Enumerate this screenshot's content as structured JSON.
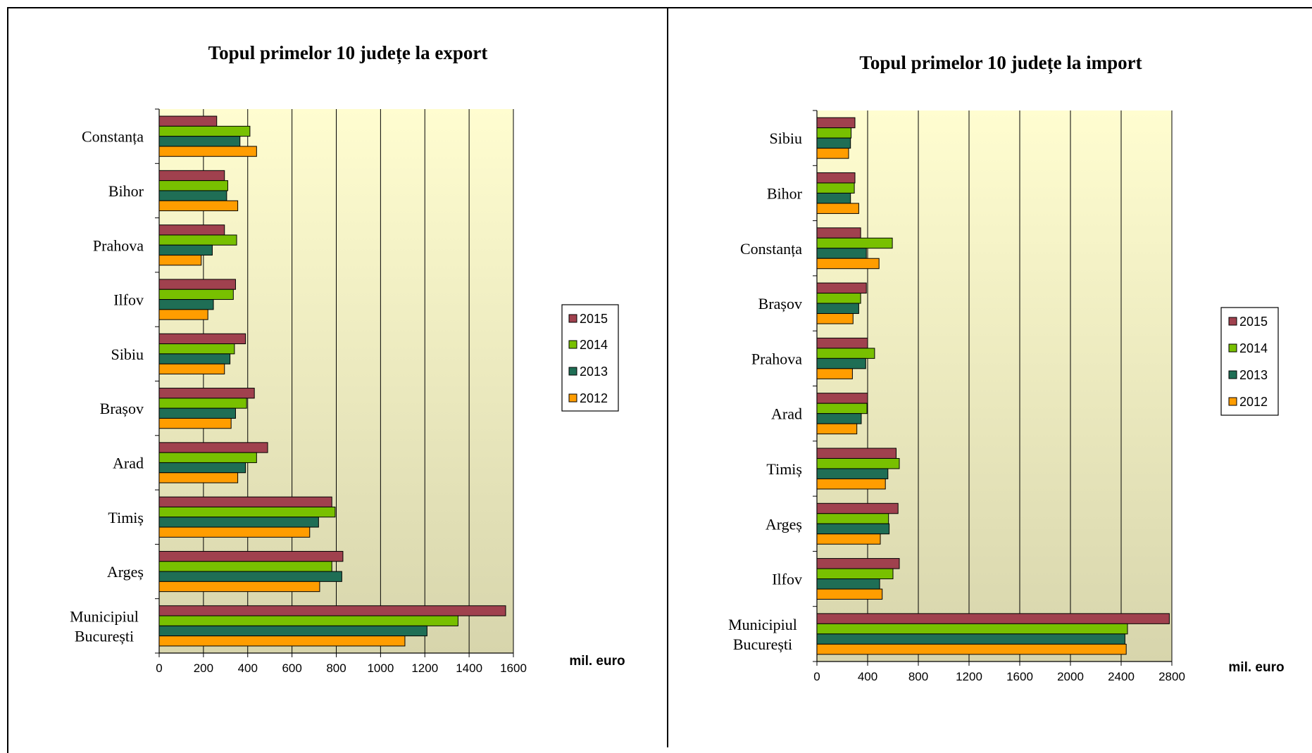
{
  "colors": {
    "2015": "#a0414e",
    "2014": "#78c000",
    "2013": "#1f6e55",
    "2012": "#ff9d00",
    "plot_top": "#fffdd0",
    "plot_bottom": "#d7d5ac"
  },
  "chart_data": [
    {
      "type": "bar",
      "orientation": "horizontal",
      "title": "Topul primelor 10 județe la export",
      "unit_label": "mil. euro",
      "categories": [
        "Constanța",
        "Bihor",
        "Prahova",
        "Ilfov",
        "Sibiu",
        "Brașov",
        "Arad",
        "Timiș",
        "Argeș",
        "Municipiul București"
      ],
      "category_lines": [
        [
          "Constanța"
        ],
        [
          "Bihor"
        ],
        [
          "Prahova"
        ],
        [
          "Ilfov"
        ],
        [
          "Sibiu"
        ],
        [
          "Brașov"
        ],
        [
          "Arad"
        ],
        [
          "Timiș"
        ],
        [
          "Argeș"
        ],
        [
          "Municipiul",
          "București"
        ]
      ],
      "series": [
        {
          "name": "2015",
          "values": [
            260,
            295,
            295,
            345,
            390,
            430,
            490,
            780,
            830,
            1565
          ]
        },
        {
          "name": "2014",
          "values": [
            410,
            310,
            350,
            335,
            340,
            395,
            440,
            795,
            780,
            1350
          ]
        },
        {
          "name": "2013",
          "values": [
            365,
            305,
            240,
            245,
            320,
            345,
            390,
            720,
            825,
            1210
          ]
        },
        {
          "name": "2012",
          "values": [
            440,
            355,
            190,
            220,
            295,
            325,
            355,
            680,
            725,
            1110
          ]
        }
      ],
      "xlim": [
        0,
        1600
      ],
      "ticks": [
        "0",
        "200",
        "400",
        "600",
        "800",
        "1000",
        "1200",
        "1400",
        "1600"
      ],
      "grid": true,
      "legend": [
        "2015",
        "2014",
        "2013",
        "2012"
      ],
      "legend_position": "right"
    },
    {
      "type": "bar",
      "orientation": "horizontal",
      "title": "Topul primelor 10 județe la import",
      "unit_label": "mil. euro",
      "categories": [
        "Sibiu",
        "Bihor",
        "Constanța",
        "Brașov",
        "Prahova",
        "Arad",
        "Timiș",
        "Argeș",
        "Ilfov",
        "Municipiul București"
      ],
      "category_lines": [
        [
          "Sibiu"
        ],
        [
          "Bihor"
        ],
        [
          "Constanța"
        ],
        [
          "Brașov"
        ],
        [
          "Prahova"
        ],
        [
          "Arad"
        ],
        [
          "Timiș"
        ],
        [
          "Argeș"
        ],
        [
          "Ilfov"
        ],
        [
          "Municipiul",
          "București"
        ]
      ],
      "series": [
        {
          "name": "2015",
          "values": [
            300,
            300,
            345,
            390,
            400,
            400,
            625,
            640,
            650,
            2780
          ]
        },
        {
          "name": "2014",
          "values": [
            270,
            295,
            595,
            345,
            455,
            395,
            650,
            565,
            600,
            2450
          ]
        },
        {
          "name": "2013",
          "values": [
            265,
            265,
            390,
            330,
            385,
            350,
            560,
            570,
            495,
            2430
          ]
        },
        {
          "name": "2012",
          "values": [
            250,
            330,
            490,
            285,
            280,
            315,
            540,
            500,
            515,
            2440
          ]
        }
      ],
      "xlim": [
        0,
        2800
      ],
      "ticks": [
        "0",
        "400",
        "800",
        "1200",
        "1600",
        "2000",
        "2400",
        "2800"
      ],
      "grid": true,
      "legend": [
        "2015",
        "2014",
        "2013",
        "2012"
      ],
      "legend_position": "right"
    }
  ]
}
